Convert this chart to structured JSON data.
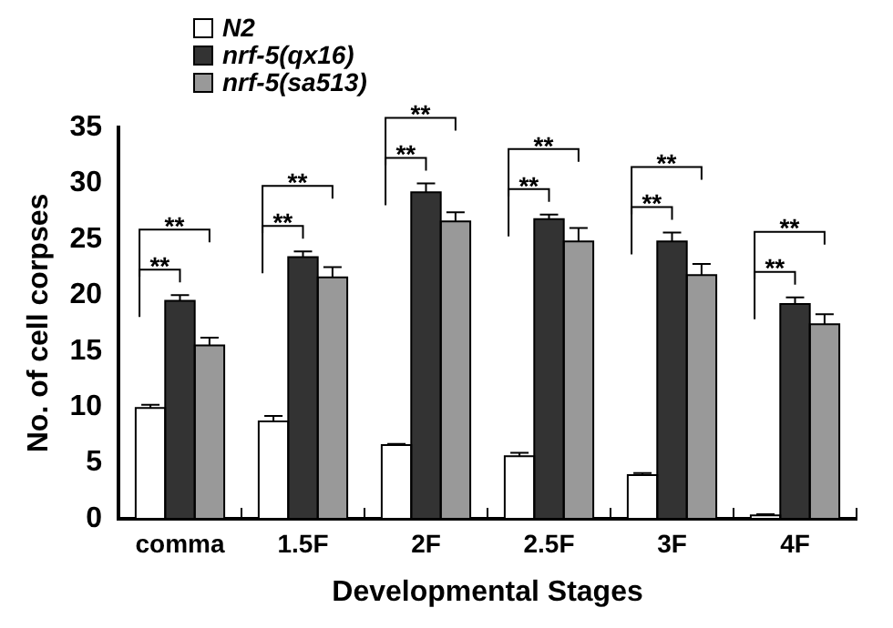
{
  "chart_data": {
    "type": "bar",
    "xlabel": "Developmental Stages",
    "ylabel": "No. of cell corpses",
    "categories": [
      "comma",
      "1.5F",
      "2F",
      "2.5F",
      "3F",
      "4F"
    ],
    "series": [
      {
        "name": "N2",
        "color": "#ffffff",
        "values": [
          9.9,
          8.7,
          6.6,
          5.6,
          3.9,
          0.3
        ],
        "errors": [
          [
            9.9,
            10.2
          ],
          [
            8.7,
            9.2
          ],
          [
            6.6,
            6.7
          ],
          [
            5.6,
            5.9
          ],
          [
            3.9,
            4.1
          ],
          [
            0.3,
            0.4
          ]
        ]
      },
      {
        "name": "nrf-5(qx16)",
        "color": "#333333",
        "values": [
          19.5,
          23.4,
          29.2,
          26.8,
          24.8,
          19.2
        ],
        "errors": [
          [
            19.5,
            20.0
          ],
          [
            23.4,
            23.9
          ],
          [
            29.2,
            30.0
          ],
          [
            26.8,
            27.2
          ],
          [
            24.8,
            25.6
          ],
          [
            19.2,
            19.8
          ]
        ]
      },
      {
        "name": "nrf-5(sa513)",
        "color": "#999999",
        "values": [
          15.5,
          21.6,
          26.6,
          24.8,
          21.8,
          17.4
        ],
        "errors": [
          [
            15.5,
            16.2
          ],
          [
            21.6,
            22.5
          ],
          [
            26.6,
            27.4
          ],
          [
            24.8,
            26.0
          ],
          [
            21.8,
            22.8
          ],
          [
            17.4,
            18.3
          ]
        ]
      }
    ],
    "ylim": [
      0,
      35
    ],
    "yticks": [
      0,
      5,
      10,
      15,
      20,
      25,
      30,
      35
    ],
    "grid": false,
    "legend": "top left",
    "annotations": [
      "**",
      "**",
      "**",
      "**",
      "**",
      "**",
      "**",
      "**",
      "**",
      "**",
      "**",
      "**"
    ]
  }
}
